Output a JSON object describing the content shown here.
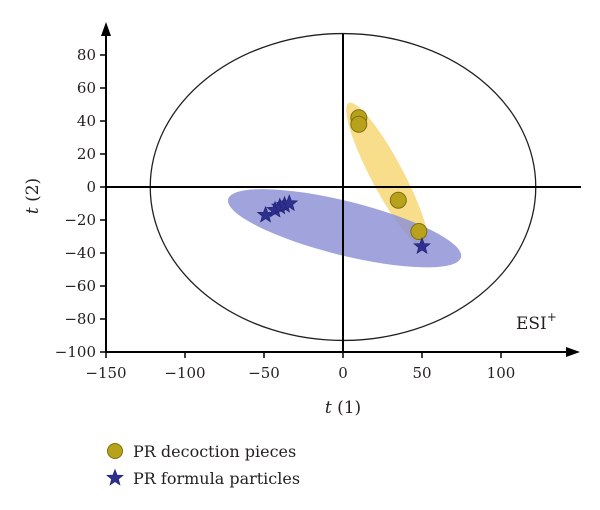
{
  "chart_data": {
    "type": "scatter",
    "xlabel_italic": "t",
    "xlabel_rest": " (1)",
    "ylabel_italic": "t",
    "ylabel_rest": " (2)",
    "xlim": [
      -150,
      150
    ],
    "ylim": [
      -100,
      100
    ],
    "x_ticks": [
      -150,
      -100,
      -50,
      0,
      50,
      100
    ],
    "y_ticks": [
      -100,
      -80,
      -60,
      -40,
      -20,
      0,
      20,
      40,
      60,
      80
    ],
    "annotation": "ESI",
    "annotation_sup": "+",
    "legend_position": "bottom-left",
    "series": [
      {
        "name": "PR decoction pieces",
        "marker": "circle",
        "color": "#b8a21c",
        "stroke": "#7d6f10",
        "ellipse_color": "#f7d875",
        "points": [
          [
            10,
            42
          ],
          [
            10,
            38
          ],
          [
            35,
            -8
          ],
          [
            48,
            -27
          ]
        ]
      },
      {
        "name": "PR formula particles",
        "marker": "star",
        "color": "#2e2f8e",
        "stroke": "#1f2070",
        "ellipse_color": "#8f93d6",
        "points": [
          [
            -49,
            -17
          ],
          [
            -43,
            -14
          ],
          [
            -40,
            -12
          ],
          [
            -37,
            -11
          ],
          [
            -34,
            -10
          ],
          [
            50,
            -36
          ]
        ]
      }
    ],
    "confidence_ellipse": {
      "center": [
        0,
        0
      ],
      "radii": [
        122,
        93
      ]
    },
    "grid": false
  }
}
